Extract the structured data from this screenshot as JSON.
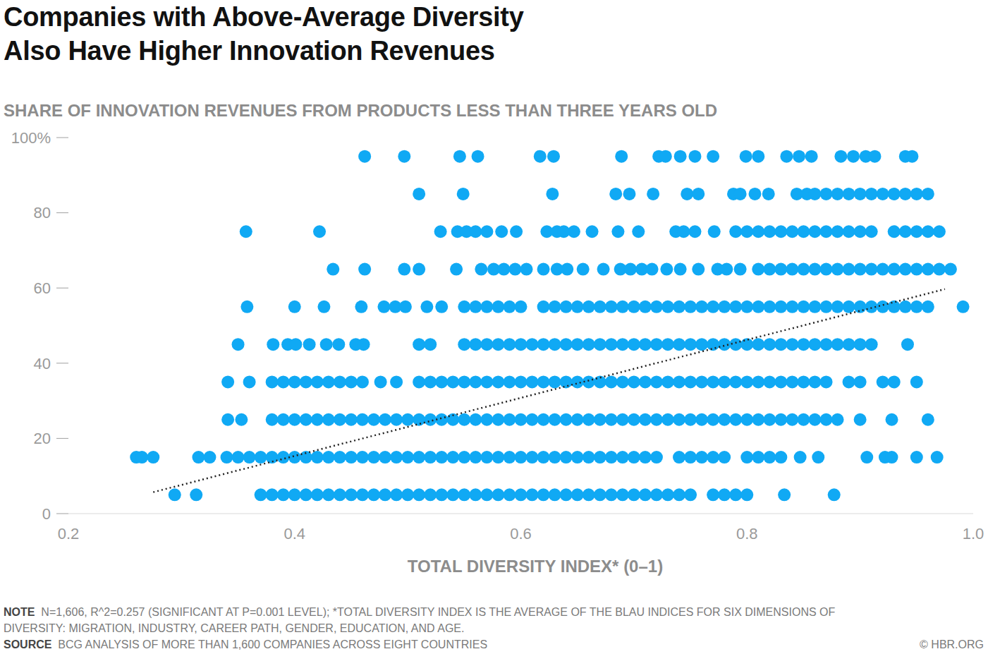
{
  "chart_data": {
    "type": "scatter",
    "title": "Companies with Above-Average Diversity\nAlso Have Higher Innovation Revenues",
    "ylabel": "SHARE OF INNOVATION REVENUES FROM PRODUCTS LESS THAN THREE YEARS OLD",
    "xlabel": "TOTAL DIVERSITY INDEX* (0–1)",
    "note_label": "NOTE",
    "note": "N=1,606, R^2=0.257 (SIGNIFICANT AT P=0.001 LEVEL); *TOTAL DIVERSITY INDEX IS THE AVERAGE OF THE BLAU INDICES FOR SIX DIMENSIONS OF DIVERSITY: MIGRATION, INDUSTRY, CAREER PATH, GENDER, EDUCATION, AND AGE.",
    "source_label": "SOURCE",
    "source": "BCG ANALYSIS OF MORE THAN 1,600 COMPANIES ACROSS EIGHT COUNTRIES",
    "credit": "© HBR.ORG",
    "color": "#10a9f4",
    "marker": "circle",
    "grid": false,
    "xlim": [
      0.2,
      1
    ],
    "xticks": [
      0.2,
      0.4,
      0.6,
      0.8,
      {
        "value": 1,
        "label": "1.0"
      }
    ],
    "ylim": [
      0,
      100
    ],
    "yticks": [
      0,
      20,
      40,
      60,
      80,
      {
        "value": 100,
        "label": "100%"
      }
    ],
    "x": [
      0.462,
      0.497,
      0.546,
      0.562,
      0.617,
      0.629,
      0.689,
      0.722,
      0.728,
      0.741,
      0.754,
      0.77,
      0.799,
      0.81,
      0.835,
      0.846,
      0.857,
      0.883,
      0.894,
      0.905,
      0.913,
      0.94,
      0.946,
      0.51,
      0.549,
      0.628,
      0.684,
      0.696,
      0.717,
      0.747,
      0.757,
      0.788,
      0.794,
      0.807,
      0.819,
      0.844,
      0.853,
      0.86,
      0.87,
      0.88,
      0.89,
      0.9,
      0.91,
      0.92,
      0.93,
      0.94,
      0.95,
      0.96,
      0.357,
      0.422,
      0.529,
      0.544,
      0.552,
      0.56,
      0.57,
      0.583,
      0.596,
      0.623,
      0.632,
      0.638,
      0.647,
      0.663,
      0.686,
      0.704,
      0.737,
      0.744,
      0.754,
      0.771,
      0.79,
      0.8,
      0.81,
      0.82,
      0.83,
      0.84,
      0.85,
      0.86,
      0.87,
      0.88,
      0.89,
      0.9,
      0.91,
      0.93,
      0.94,
      0.95,
      0.96,
      0.97,
      0.434,
      0.462,
      0.497,
      0.51,
      0.543,
      0.565,
      0.576,
      0.585,
      0.595,
      0.605,
      0.62,
      0.632,
      0.641,
      0.655,
      0.673,
      0.688,
      0.697,
      0.707,
      0.716,
      0.729,
      0.741,
      0.757,
      0.774,
      0.782,
      0.794,
      0.81,
      0.82,
      0.83,
      0.84,
      0.85,
      0.86,
      0.87,
      0.88,
      0.89,
      0.9,
      0.91,
      0.92,
      0.93,
      0.94,
      0.95,
      0.96,
      0.97,
      0.98,
      0.358,
      0.4,
      0.426,
      0.459,
      0.479,
      0.489,
      0.498,
      0.517,
      0.53,
      0.55,
      0.56,
      0.57,
      0.58,
      0.59,
      0.6,
      0.62,
      0.63,
      0.64,
      0.65,
      0.66,
      0.67,
      0.68,
      0.69,
      0.7,
      0.71,
      0.72,
      0.73,
      0.74,
      0.75,
      0.76,
      0.77,
      0.78,
      0.79,
      0.8,
      0.81,
      0.82,
      0.83,
      0.84,
      0.85,
      0.86,
      0.87,
      0.88,
      0.89,
      0.9,
      0.91,
      0.92,
      0.93,
      0.94,
      0.95,
      0.96,
      0.991,
      0.35,
      0.381,
      0.394,
      0.401,
      0.413,
      0.428,
      0.439,
      0.454,
      0.461,
      0.51,
      0.52,
      0.55,
      0.56,
      0.57,
      0.58,
      0.59,
      0.6,
      0.61,
      0.62,
      0.63,
      0.64,
      0.65,
      0.66,
      0.67,
      0.68,
      0.69,
      0.7,
      0.71,
      0.72,
      0.73,
      0.74,
      0.75,
      0.76,
      0.77,
      0.78,
      0.79,
      0.8,
      0.81,
      0.82,
      0.83,
      0.84,
      0.85,
      0.86,
      0.87,
      0.88,
      0.89,
      0.9,
      0.91,
      0.942,
      0.341,
      0.36,
      0.38,
      0.39,
      0.4,
      0.41,
      0.42,
      0.43,
      0.44,
      0.45,
      0.46,
      0.476,
      0.49,
      0.51,
      0.52,
      0.53,
      0.54,
      0.55,
      0.56,
      0.57,
      0.58,
      0.59,
      0.6,
      0.61,
      0.62,
      0.63,
      0.64,
      0.65,
      0.66,
      0.67,
      0.68,
      0.69,
      0.7,
      0.71,
      0.72,
      0.73,
      0.74,
      0.75,
      0.76,
      0.77,
      0.78,
      0.79,
      0.8,
      0.81,
      0.82,
      0.83,
      0.84,
      0.85,
      0.86,
      0.87,
      0.89,
      0.9,
      0.92,
      0.93,
      0.95,
      0.341,
      0.353,
      0.38,
      0.39,
      0.4,
      0.41,
      0.42,
      0.43,
      0.44,
      0.45,
      0.46,
      0.47,
      0.48,
      0.49,
      0.5,
      0.51,
      0.52,
      0.53,
      0.54,
      0.55,
      0.56,
      0.57,
      0.58,
      0.59,
      0.6,
      0.61,
      0.62,
      0.63,
      0.64,
      0.65,
      0.66,
      0.67,
      0.68,
      0.69,
      0.7,
      0.71,
      0.72,
      0.73,
      0.74,
      0.75,
      0.76,
      0.77,
      0.78,
      0.79,
      0.8,
      0.81,
      0.82,
      0.83,
      0.84,
      0.85,
      0.86,
      0.87,
      0.88,
      0.9,
      0.928,
      0.96,
      0.26,
      0.265,
      0.275,
      0.315,
      0.325,
      0.34,
      0.35,
      0.36,
      0.37,
      0.38,
      0.39,
      0.4,
      0.41,
      0.42,
      0.43,
      0.44,
      0.45,
      0.46,
      0.47,
      0.48,
      0.49,
      0.5,
      0.51,
      0.52,
      0.53,
      0.54,
      0.55,
      0.56,
      0.57,
      0.58,
      0.59,
      0.6,
      0.61,
      0.62,
      0.63,
      0.64,
      0.65,
      0.66,
      0.67,
      0.68,
      0.69,
      0.7,
      0.71,
      0.72,
      0.74,
      0.75,
      0.76,
      0.77,
      0.78,
      0.8,
      0.81,
      0.82,
      0.83,
      0.847,
      0.863,
      0.906,
      0.922,
      0.928,
      0.95,
      0.968,
      0.294,
      0.313,
      0.37,
      0.38,
      0.39,
      0.4,
      0.41,
      0.42,
      0.43,
      0.44,
      0.45,
      0.46,
      0.47,
      0.48,
      0.49,
      0.5,
      0.51,
      0.52,
      0.53,
      0.54,
      0.55,
      0.56,
      0.57,
      0.58,
      0.59,
      0.6,
      0.61,
      0.62,
      0.63,
      0.64,
      0.65,
      0.66,
      0.67,
      0.68,
      0.69,
      0.7,
      0.71,
      0.72,
      0.73,
      0.74,
      0.75,
      0.77,
      0.78,
      0.79,
      0.8,
      0.833,
      0.877
    ],
    "values": [
      95,
      95,
      95,
      95,
      95,
      95,
      95,
      95,
      95,
      95,
      95,
      95,
      95,
      95,
      95,
      95,
      95,
      95,
      95,
      95,
      95,
      95,
      95,
      85,
      85,
      85,
      85,
      85,
      85,
      85,
      85,
      85,
      85,
      85,
      85,
      85,
      85,
      85,
      85,
      85,
      85,
      85,
      85,
      85,
      85,
      85,
      85,
      85,
      75,
      75,
      75,
      75,
      75,
      75,
      75,
      75,
      75,
      75,
      75,
      75,
      75,
      75,
      75,
      75,
      75,
      75,
      75,
      75,
      75,
      75,
      75,
      75,
      75,
      75,
      75,
      75,
      75,
      75,
      75,
      75,
      75,
      75,
      75,
      75,
      75,
      75,
      65,
      65,
      65,
      65,
      65,
      65,
      65,
      65,
      65,
      65,
      65,
      65,
      65,
      65,
      65,
      65,
      65,
      65,
      65,
      65,
      65,
      65,
      65,
      65,
      65,
      65,
      65,
      65,
      65,
      65,
      65,
      65,
      65,
      65,
      65,
      65,
      65,
      65,
      65,
      65,
      65,
      65,
      65,
      55,
      55,
      55,
      55,
      55,
      55,
      55,
      55,
      55,
      55,
      55,
      55,
      55,
      55,
      55,
      55,
      55,
      55,
      55,
      55,
      55,
      55,
      55,
      55,
      55,
      55,
      55,
      55,
      55,
      55,
      55,
      55,
      55,
      55,
      55,
      55,
      55,
      55,
      55,
      55,
      55,
      55,
      55,
      55,
      55,
      55,
      55,
      55,
      55,
      55,
      55,
      45,
      45,
      45,
      45,
      45,
      45,
      45,
      45,
      45,
      45,
      45,
      45,
      45,
      45,
      45,
      45,
      45,
      45,
      45,
      45,
      45,
      45,
      45,
      45,
      45,
      45,
      45,
      45,
      45,
      45,
      45,
      45,
      45,
      45,
      45,
      45,
      45,
      45,
      45,
      45,
      45,
      45,
      45,
      45,
      45,
      45,
      45,
      45,
      45,
      35,
      35,
      35,
      35,
      35,
      35,
      35,
      35,
      35,
      35,
      35,
      35,
      35,
      35,
      35,
      35,
      35,
      35,
      35,
      35,
      35,
      35,
      35,
      35,
      35,
      35,
      35,
      35,
      35,
      35,
      35,
      35,
      35,
      35,
      35,
      35,
      35,
      35,
      35,
      35,
      35,
      35,
      35,
      35,
      35,
      35,
      35,
      35,
      35,
      35,
      35,
      35,
      35,
      35,
      35,
      25,
      25,
      25,
      25,
      25,
      25,
      25,
      25,
      25,
      25,
      25,
      25,
      25,
      25,
      25,
      25,
      25,
      25,
      25,
      25,
      25,
      25,
      25,
      25,
      25,
      25,
      25,
      25,
      25,
      25,
      25,
      25,
      25,
      25,
      25,
      25,
      25,
      25,
      25,
      25,
      25,
      25,
      25,
      25,
      25,
      25,
      25,
      25,
      25,
      25,
      25,
      25,
      25,
      25,
      25,
      25,
      15,
      15,
      15,
      15,
      15,
      15,
      15,
      15,
      15,
      15,
      15,
      15,
      15,
      15,
      15,
      15,
      15,
      15,
      15,
      15,
      15,
      15,
      15,
      15,
      15,
      15,
      15,
      15,
      15,
      15,
      15,
      15,
      15,
      15,
      15,
      15,
      15,
      15,
      15,
      15,
      15,
      15,
      15,
      15,
      15,
      15,
      15,
      15,
      15,
      15,
      15,
      15,
      15,
      15,
      15,
      15,
      15,
      15,
      15,
      15,
      5,
      5,
      5,
      5,
      5,
      5,
      5,
      5,
      5,
      5,
      5,
      5,
      5,
      5,
      5,
      5,
      5,
      5,
      5,
      5,
      5,
      5,
      5,
      5,
      5,
      5,
      5,
      5,
      5,
      5,
      5,
      5,
      5,
      5,
      5,
      5,
      5,
      5,
      5,
      5,
      5,
      5,
      5,
      5,
      5,
      5,
      5
    ],
    "trendline": {
      "x": [
        0.275,
        0.975
      ],
      "values": [
        5.7,
        59.7
      ],
      "color": "#222222",
      "line_style": "dotted"
    }
  }
}
